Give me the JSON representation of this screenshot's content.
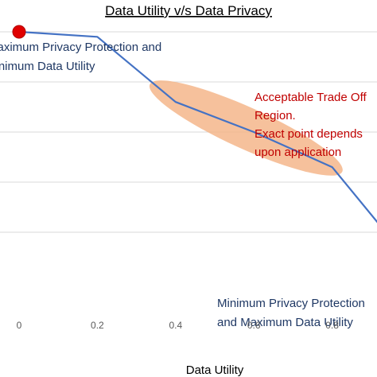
{
  "chart_data": {
    "type": "line",
    "title": "Data Utility v/s Data Privacy",
    "xlabel": "Data Utility",
    "ylabel": "",
    "xlim": [
      0,
      1
    ],
    "ylim": [
      0,
      1
    ],
    "x_ticks": [
      "0",
      "0.2",
      "0.4",
      "0.6",
      "0.8"
    ],
    "grid": "horizontal",
    "series": [
      {
        "x": [
          0,
          0.2,
          0.4,
          0.6,
          0.8,
          1.0
        ],
        "y": [
          1.0,
          0.98,
          0.72,
          0.6,
          0.46,
          0.08
        ]
      }
    ],
    "highlight_point": {
      "x": 0,
      "y": 1.0,
      "color": "#e00000"
    },
    "region": {
      "x_from": 0.36,
      "x_to": 0.8,
      "color": "#f4b183"
    },
    "annotations": {
      "top_left": [
        "Maximum Privacy Protection and",
        "Minimum Data Utility"
      ],
      "bottom_right": [
        "Minimum Privacy Protection",
        "and Maximum Data Utility"
      ],
      "region_note": [
        "Acceptable Trade Off",
        "Region.",
        "Exact point depends",
        "upon application"
      ]
    },
    "colors": {
      "line": "#4472c4",
      "grid": "#d9d9d9"
    }
  }
}
